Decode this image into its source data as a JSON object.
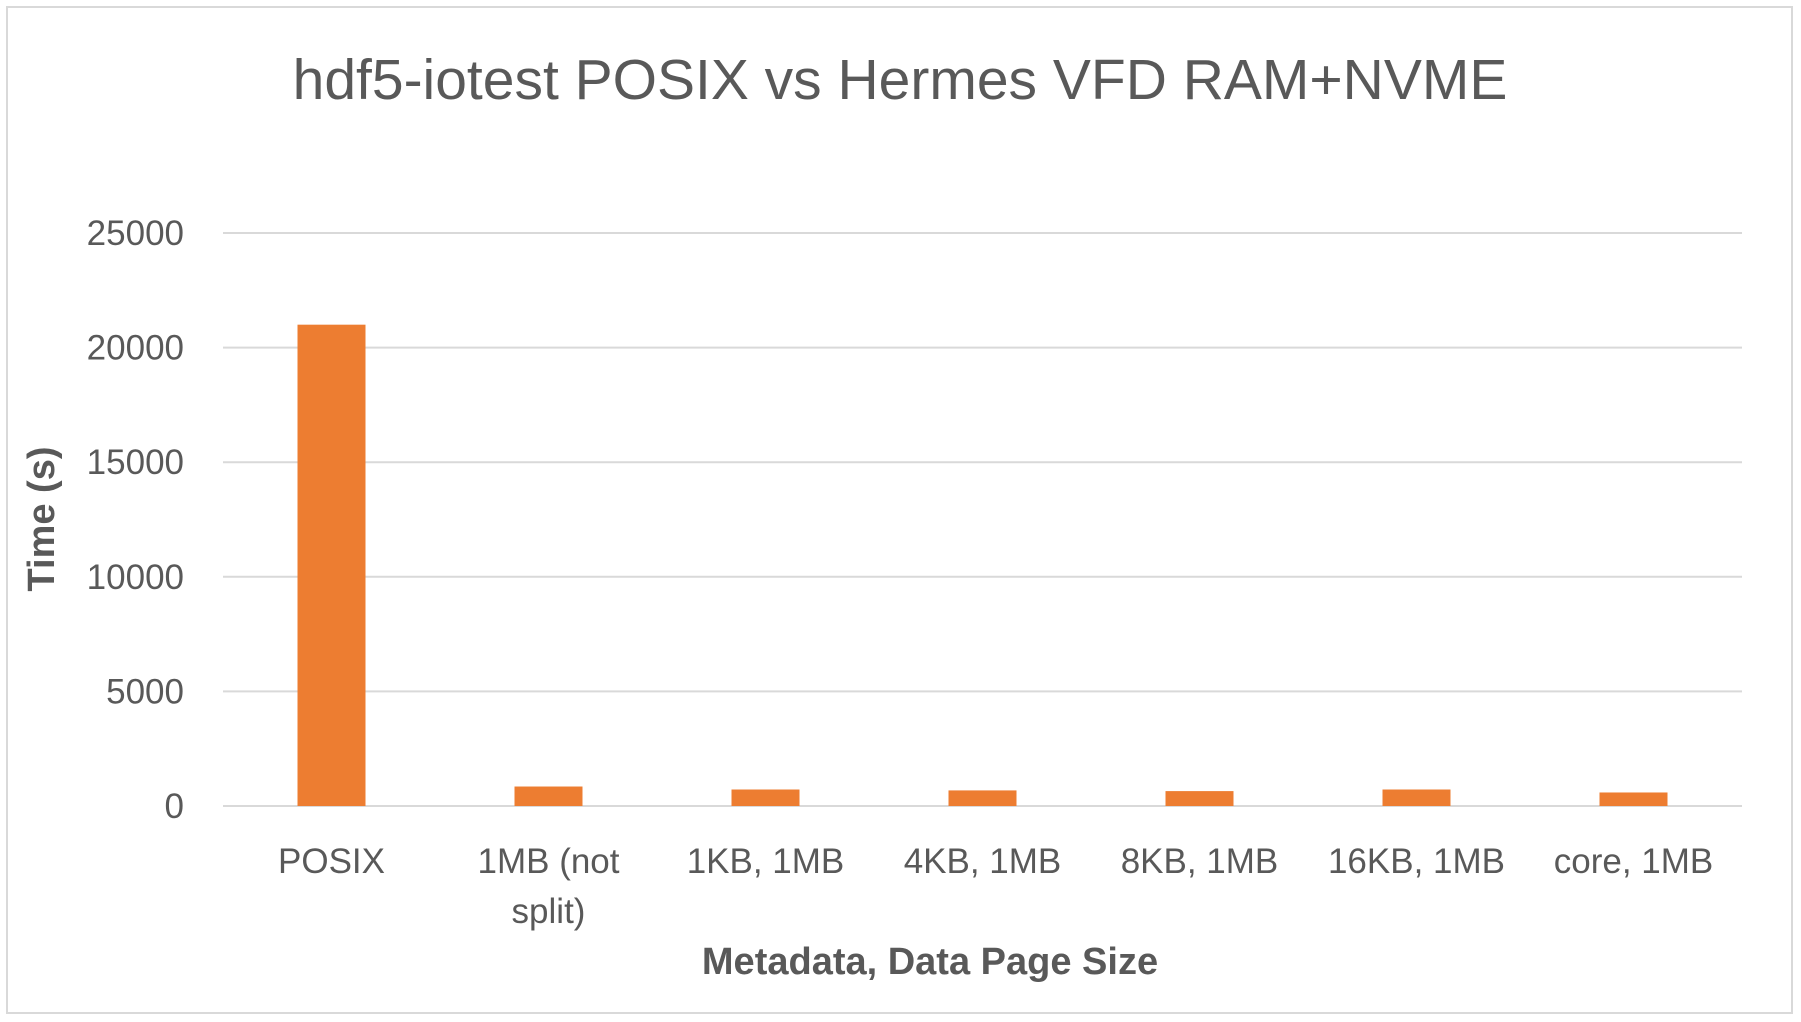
{
  "chart_data": {
    "type": "bar",
    "title": "hdf5-iotest POSIX vs Hermes VFD RAM+NVME",
    "xlabel": "Metadata, Data Page Size",
    "ylabel": "Time (s)",
    "categories": [
      [
        "POSIX"
      ],
      [
        "1MB (not",
        "split)"
      ],
      [
        "1KB, 1MB"
      ],
      [
        "4KB, 1MB"
      ],
      [
        "8KB, 1MB"
      ],
      [
        "16KB, 1MB"
      ],
      [
        "core, 1MB"
      ]
    ],
    "values": [
      21000,
      850,
      720,
      680,
      650,
      720,
      590
    ],
    "ylim": [
      0,
      25000
    ],
    "yticks": [
      0,
      5000,
      10000,
      15000,
      20000,
      25000
    ],
    "grid": true,
    "legend": "none",
    "bar_color": "#ed7d31",
    "grid_color": "#d9d9d9"
  }
}
